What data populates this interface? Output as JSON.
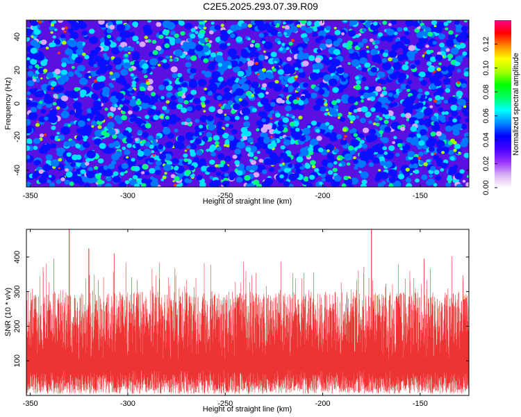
{
  "title": "C2E5.2025.293.07.39.R09",
  "chart_data": [
    {
      "type": "heatmap",
      "xlabel": "Height of straight line (km)",
      "ylabel": "Frequency (Hz)",
      "xlim": [
        -352,
        -125
      ],
      "ylim": [
        -50,
        50
      ],
      "xticks": [
        -350,
        -300,
        -250,
        -200,
        -150
      ],
      "yticks": [
        -40,
        -20,
        0,
        20,
        40
      ],
      "colorbar": {
        "label": "Normalized spectral amplitude",
        "range": [
          0.0,
          0.14
        ],
        "ticks": [
          "0.00",
          "0.02",
          "0.04",
          "0.06",
          "0.08",
          "0.10",
          "0.12"
        ],
        "colors": [
          "#ffffff",
          "#d8b0f0",
          "#9933ff",
          "#4400ff",
          "#0000ff",
          "#0088ff",
          "#00ffff",
          "#00ff66",
          "#00ff00",
          "#aaff00",
          "#ffff00",
          "#ff8800",
          "#ff0000",
          "#ff0088"
        ]
      }
    },
    {
      "type": "line",
      "xlabel": "Height of straight line (km)",
      "ylabel": "SNR (10 * v/v)",
      "xlim": [
        -352,
        -125
      ],
      "ylim": [
        0,
        480
      ],
      "xticks": [
        -350,
        -300,
        -250,
        -200,
        -150
      ],
      "yticks": [
        100,
        200,
        300,
        400
      ],
      "color": "#ee3333",
      "series_summary": {
        "typical_range": [
          60,
          260
        ],
        "peaks": [
          {
            "x": -330,
            "y": 480
          },
          {
            "x": -320,
            "y": 425
          },
          {
            "x": -307,
            "y": 410
          },
          {
            "x": -175,
            "y": 480
          },
          {
            "x": -148,
            "y": 395
          }
        ]
      }
    }
  ]
}
